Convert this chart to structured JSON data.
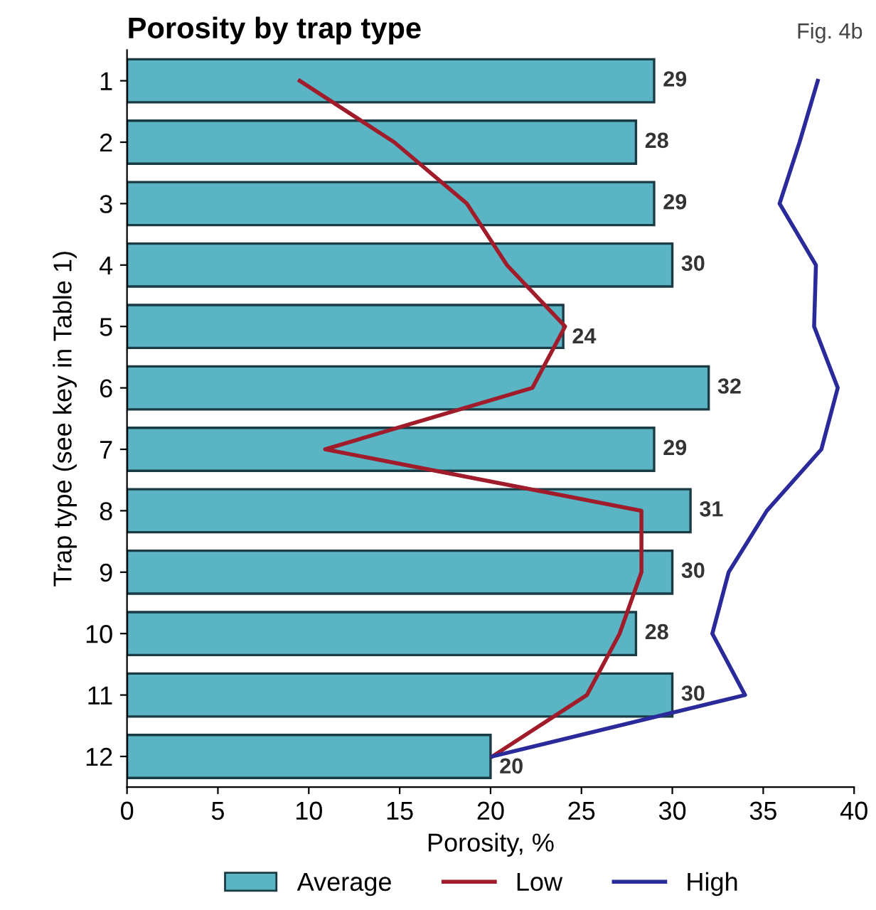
{
  "chart_data": {
    "type": "bar",
    "orientation": "horizontal",
    "title": "Porosity by trap type",
    "xlabel": "Porosity, %",
    "ylabel": "Trap type (see key in Table 1)",
    "annotations": [
      "Fig. 4b"
    ],
    "categories": [
      "1",
      "2",
      "3",
      "4",
      "5",
      "6",
      "7",
      "8",
      "9",
      "10",
      "11",
      "12"
    ],
    "series": [
      {
        "name": "Average",
        "color": "#5ab4c4",
        "values": [
          29,
          28,
          29,
          30,
          24,
          32,
          29,
          31,
          30,
          28,
          30,
          20
        ],
        "value_labels": [
          "29",
          "28",
          "29",
          "30",
          "24",
          "32",
          "29",
          "31",
          "30",
          "28",
          "30",
          "20"
        ]
      },
      {
        "name": "Low",
        "type": "line",
        "color": "#a01c2a",
        "values": [
          9.5,
          14.7,
          18.7,
          20.9,
          24.1,
          22.3,
          10.9,
          28.3,
          28.3,
          27.1,
          25.3,
          20.1
        ]
      },
      {
        "name": "High",
        "type": "line",
        "color": "#2a2a9a",
        "values": [
          38.0,
          37.0,
          35.9,
          37.9,
          37.8,
          39.1,
          38.2,
          35.2,
          33.1,
          32.2,
          34.0,
          20.1
        ]
      }
    ],
    "xlim": [
      0,
      40
    ],
    "xticks": [
      0,
      5,
      10,
      15,
      20,
      25,
      30,
      35,
      40
    ],
    "grid": false,
    "legend": "bottom",
    "line_style": "solid",
    "marker": "none"
  }
}
